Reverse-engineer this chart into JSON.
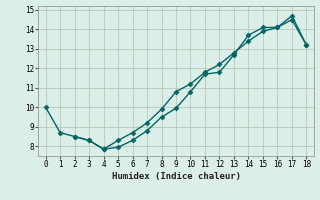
{
  "line1_x": [
    0,
    1,
    2,
    3,
    4,
    5,
    6,
    7,
    8,
    9,
    10,
    11,
    12,
    13,
    14,
    15,
    16,
    17,
    18
  ],
  "line1_y": [
    10.0,
    8.7,
    8.5,
    8.3,
    7.85,
    7.95,
    8.3,
    8.8,
    9.5,
    9.95,
    10.8,
    11.7,
    11.8,
    12.7,
    13.7,
    14.1,
    14.1,
    14.7,
    13.2
  ],
  "line2_x": [
    2,
    3,
    4,
    5,
    6,
    7,
    8,
    9,
    10,
    11,
    12,
    13,
    14,
    15,
    16,
    17,
    18
  ],
  "line2_y": [
    8.5,
    8.3,
    7.85,
    8.3,
    8.7,
    9.2,
    9.9,
    10.8,
    11.2,
    11.8,
    12.2,
    12.8,
    13.4,
    13.9,
    14.1,
    14.5,
    13.2
  ],
  "line_color": "#006666",
  "bg_color": "#dceee8",
  "grid_color": "#b8c8b8",
  "xlabel": "Humidex (Indice chaleur)",
  "xlim": [
    -0.5,
    18.5
  ],
  "ylim": [
    7.5,
    15.2
  ],
  "yticks": [
    8,
    9,
    10,
    11,
    12,
    13,
    14,
    15
  ],
  "xticks": [
    0,
    1,
    2,
    3,
    4,
    5,
    6,
    7,
    8,
    9,
    10,
    11,
    12,
    13,
    14,
    15,
    16,
    17,
    18
  ],
  "marker": "D",
  "markersize": 2.5,
  "linewidth": 1.0
}
